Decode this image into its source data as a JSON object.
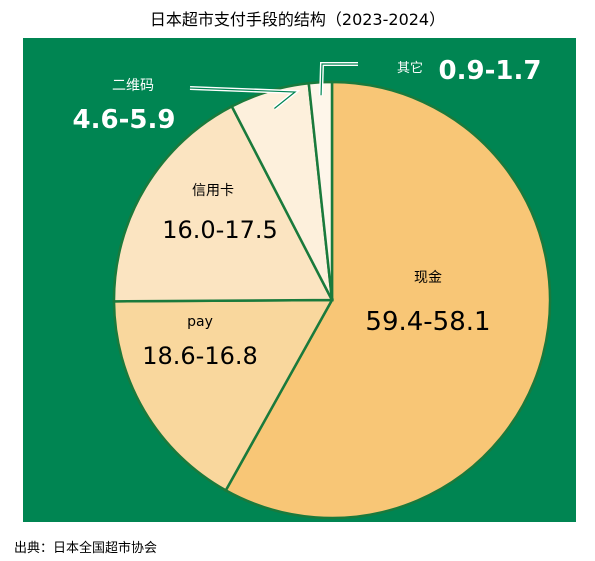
{
  "chart_data": {
    "type": "pie",
    "title": "日本超市支付手段的结构（2023-2024）",
    "source": "出典：日本全国超市协会",
    "slices": [
      {
        "label": "现金",
        "value_text": "59.4-58.1",
        "from": 59.4,
        "to": 58.1,
        "color": "#f8c676"
      },
      {
        "label": "pay",
        "value_text": "18.6-16.8",
        "from": 18.6,
        "to": 16.8,
        "color": "#f9d79d"
      },
      {
        "label": "信用卡",
        "value_text": "16.0-17.5",
        "from": 16.0,
        "to": 17.5,
        "color": "#fbe4c1"
      },
      {
        "label": "二维码",
        "value_text": "4.6-5.9",
        "from": 4.6,
        "to": 5.9,
        "color": "#fdf0dc"
      },
      {
        "label": "其它",
        "value_text": "0.9-1.7",
        "from": 0.9,
        "to": 1.7,
        "color": "#fef6ea"
      }
    ],
    "colors": {
      "background": "#008552",
      "slice_border": "#1a7a3c",
      "leader_line": "#ffffff"
    }
  }
}
